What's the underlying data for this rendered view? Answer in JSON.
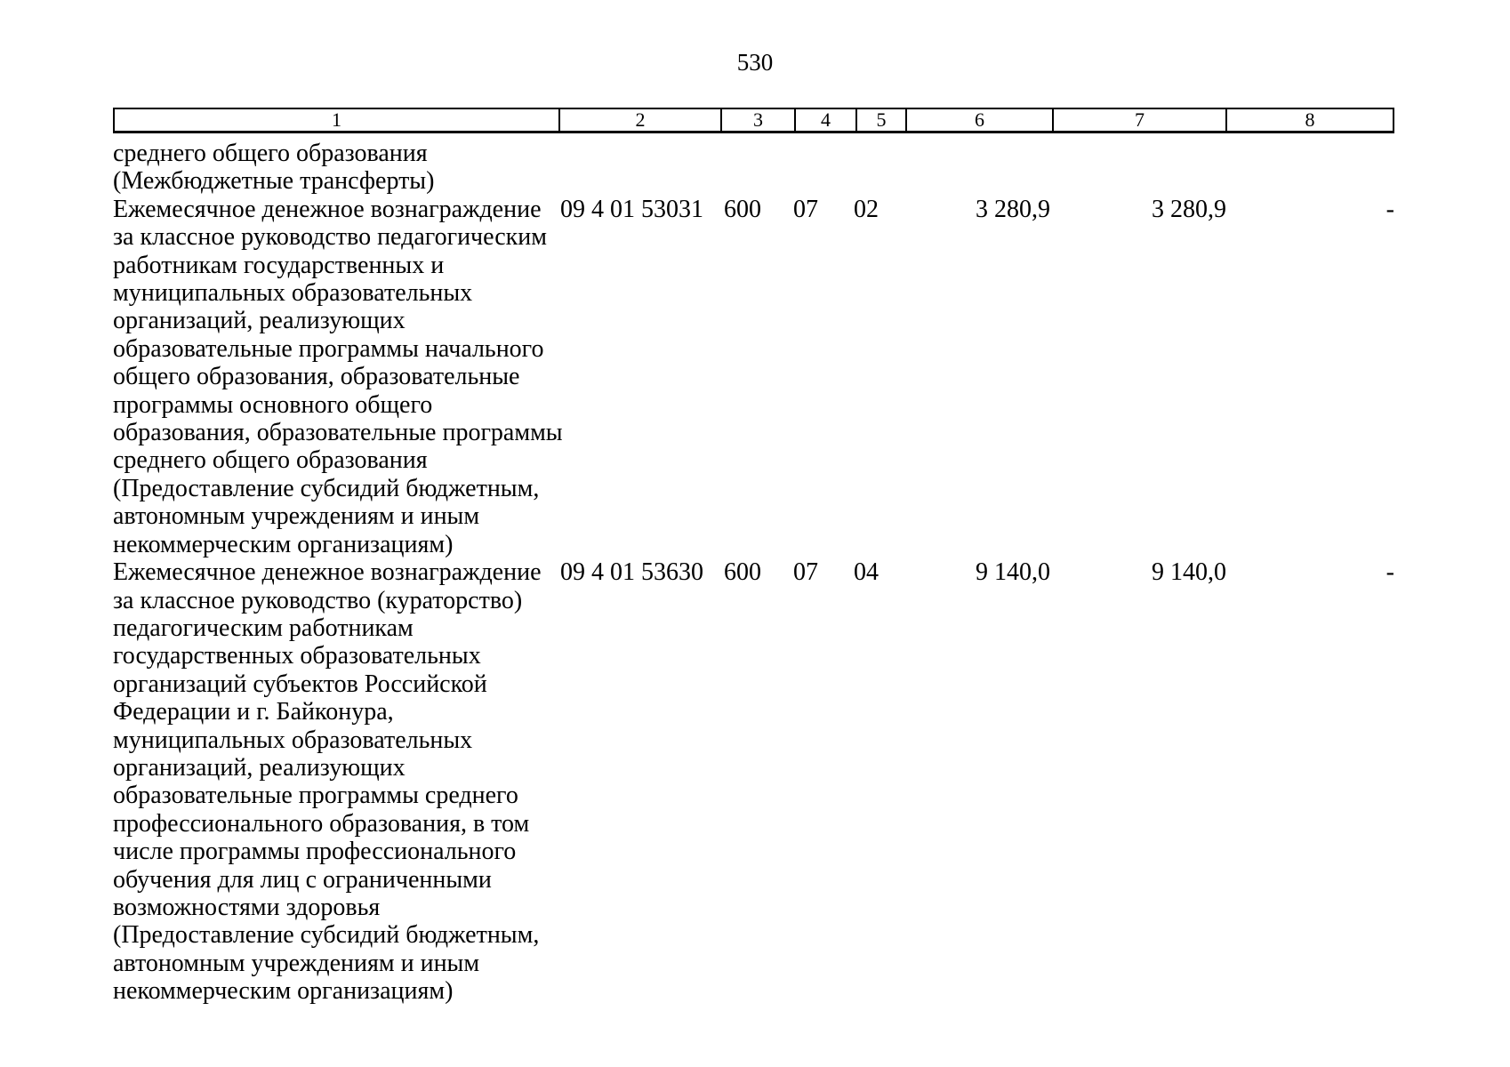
{
  "page_number": "530",
  "table": {
    "header_columns": [
      "1",
      "2",
      "3",
      "4",
      "5",
      "6",
      "7",
      "8"
    ],
    "rows": [
      {
        "name": "среднего общего образования\n(Межбюджетные трансферты)",
        "code": "",
        "vr": "",
        "rz": "",
        "pr": "",
        "amount_1": "",
        "amount_2": "",
        "amount_3": ""
      },
      {
        "name": "Ежемесячное денежное вознаграждение\nза классное руководство педагогическим\nработникам государственных и\nмуниципальных образовательных\nорганизаций, реализующих\nобразовательные программы начального\nобщего образования, образовательные\nпрограммы основного общего\nобразования, образовательные программы\nсреднего общего образования\n(Предоставление субсидий бюджетным,\nавтономным учреждениям и иным\nнекоммерческим организациям)",
        "code": "09 4 01 53031",
        "vr": "600",
        "rz": "07",
        "pr": "02",
        "amount_1": "3 280,9",
        "amount_2": "3 280,9",
        "amount_3": "-"
      },
      {
        "name": "Ежемесячное денежное вознаграждение\nза классное руководство (кураторство)\nпедагогическим работникам\nгосударственных образовательных\nорганизаций субъектов Российской\nФедерации и г. Байконура,\nмуниципальных образовательных\nорганизаций, реализующих\nобразовательные программы среднего\nпрофессионального образования, в том\nчисле программы профессионального\nобучения для лиц с ограниченными\nвозможностями здоровья\n(Предоставление субсидий бюджетным,\nавтономным учреждениям и иным\nнекоммерческим организациям)",
        "code": "09 4 01 53630",
        "vr": "600",
        "rz": "07",
        "pr": "04",
        "amount_1": "9 140,0",
        "amount_2": "9 140,0",
        "amount_3": "-"
      }
    ]
  }
}
